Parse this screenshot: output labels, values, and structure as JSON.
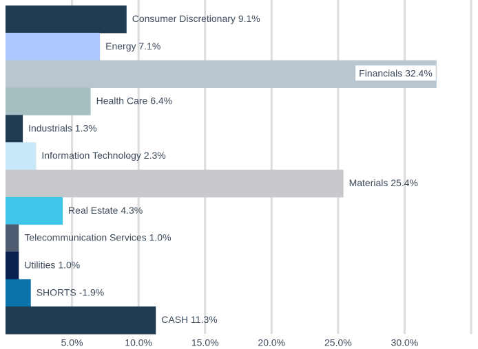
{
  "chart_data": {
    "type": "hbar",
    "categories": [
      "Consumer Discretionary",
      "Energy",
      "Financials",
      "Health Care",
      "Industrials",
      "Information Technology",
      "Materials",
      "Real Estate",
      "Telecommunication Services",
      "Utilities",
      "SHORTS",
      "CASH"
    ],
    "values": [
      9.1,
      7.1,
      32.4,
      6.4,
      1.3,
      2.3,
      25.4,
      4.3,
      1.0,
      1.0,
      -1.9,
      11.3
    ],
    "value_labels": [
      "9.1%",
      "7.1%",
      "32.4%",
      "6.4%",
      "1.3%",
      "2.3%",
      "25.4%",
      "4.3%",
      "1.0%",
      "1.0%",
      "-1.9%",
      "11.3%"
    ],
    "colors": [
      "#1f3b51",
      "#adc8fe",
      "#b9c6cf",
      "#a6bfc1",
      "#1f3b51",
      "#c6e8f8",
      "#c7c8cb",
      "#40c4ea",
      "#4f5b70",
      "#0b2152",
      "#0b72a9",
      "#1f3b51"
    ],
    "xlim": [
      0,
      35
    ],
    "xticks": [
      {
        "value": 5,
        "label": "5.0%"
      },
      {
        "value": 10,
        "label": "10.0%"
      },
      {
        "value": 15,
        "label": "15.0%"
      },
      {
        "value": 20,
        "label": "20.0%"
      },
      {
        "value": 25,
        "label": "25.0%"
      },
      {
        "value": 30,
        "label": "30.0%"
      }
    ],
    "grid": true
  }
}
